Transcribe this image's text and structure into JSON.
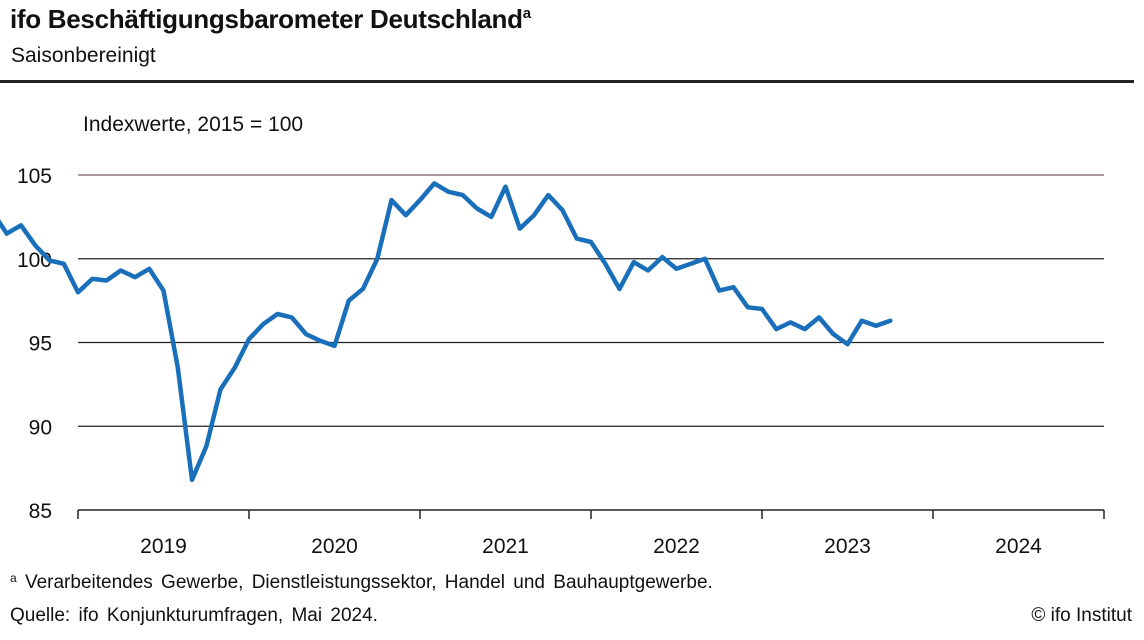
{
  "header": {
    "title": "ifo Beschäftigungsbarometer Deutschland",
    "title_marker": "a",
    "subtitle": "Saisonbereinigt"
  },
  "footer": {
    "footnote_marker": "a",
    "footnote": "Verarbeitendes Gewerbe, Dienstleistungssektor, Handel und Bauhauptgewerbe.",
    "source": "Quelle: ifo Konjunkturumfragen, Mai 2024.",
    "copyright": "© ifo Institut"
  },
  "chart_data": {
    "type": "line",
    "title": "ifo Beschäftigungsbarometer Deutschland",
    "ylabel": "Indexwerte, 2015 = 100",
    "ylim": [
      85,
      105
    ],
    "yticks": [
      85,
      90,
      95,
      100,
      105
    ],
    "x_year_labels": [
      "2019",
      "2020",
      "2021",
      "2022",
      "2023",
      "2024"
    ],
    "x_start": "2018-06",
    "x_end": "2024-05",
    "grid": true,
    "line_color": "#1a6fba",
    "series": [
      {
        "values": [
          102.7,
          102.8,
          101.5,
          102.0,
          100.8,
          99.9,
          99.7,
          98.0,
          98.8,
          98.7,
          99.3,
          98.9,
          99.4,
          98.1,
          93.5,
          86.8,
          88.8,
          92.2,
          93.5,
          95.2,
          96.1,
          96.7,
          96.5,
          95.5,
          95.1,
          94.8,
          97.5,
          98.2,
          100.0,
          103.5,
          102.6,
          103.5,
          104.5,
          104.0,
          103.8,
          103.0,
          102.5,
          104.3,
          101.8,
          102.6,
          103.8,
          102.9,
          101.2,
          101.0,
          99.7,
          98.2,
          99.8,
          99.3,
          100.1,
          99.4,
          99.7,
          100.0,
          98.1,
          98.3,
          97.1,
          97.0,
          95.8,
          96.2,
          95.8,
          96.5,
          95.5,
          94.9,
          96.3,
          96.0,
          96.3
        ]
      }
    ]
  }
}
